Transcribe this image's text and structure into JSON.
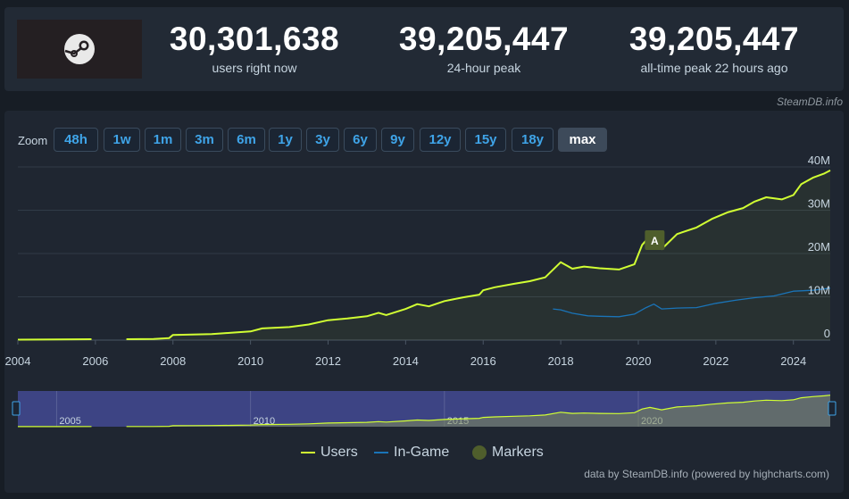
{
  "stats": [
    {
      "value": "30,301,638",
      "label": "users right now"
    },
    {
      "value": "39,205,447",
      "label": "24-hour peak"
    },
    {
      "value": "39,205,447",
      "label": "all-time peak 22 hours ago"
    }
  ],
  "credit_top": "SteamDB.info",
  "zoom": {
    "label": "Zoom",
    "buttons": [
      "48h",
      "1w",
      "1m",
      "3m",
      "6m",
      "1y",
      "3y",
      "6y",
      "9y",
      "12y",
      "15y",
      "18y",
      "max"
    ],
    "active": "max"
  },
  "footer_credit": "data by SteamDB.info (powered by highcharts.com)",
  "colors": {
    "users": "#d1ff33",
    "in_game": "#1a74b8",
    "marker": "#4f5e2c",
    "background": "#1f2631"
  },
  "chart_data": {
    "type": "line",
    "title": "",
    "xlabel": "",
    "ylabel": "",
    "xlim": [
      2004.0,
      2024.95
    ],
    "ylim": [
      0,
      40000000
    ],
    "y_ticks": [
      "0",
      "10M",
      "20M",
      "30M",
      "40M"
    ],
    "x_ticks": [
      "2004",
      "2006",
      "2008",
      "2010",
      "2012",
      "2014",
      "2016",
      "2018",
      "2020",
      "2022",
      "2024"
    ],
    "navigator_ticks": [
      "2005",
      "2010",
      "2015",
      "2020"
    ],
    "legend": [
      "Users",
      "In-Game",
      "Markers"
    ],
    "legend_position": "bottom",
    "grid": true,
    "markers": [
      {
        "label": "A",
        "x": 2020.4
      }
    ],
    "series": [
      {
        "name": "Users",
        "segments": [
          [
            [
              2004.0,
              0.1
            ],
            [
              2005.0,
              0.15
            ],
            [
              2005.9,
              0.2
            ]
          ],
          [
            [
              2006.8,
              0.2
            ],
            [
              2007.5,
              0.25
            ],
            [
              2007.9,
              0.45
            ],
            [
              2008.0,
              1.2
            ],
            [
              2008.5,
              1.3
            ],
            [
              2009.0,
              1.4
            ],
            [
              2009.5,
              1.7
            ],
            [
              2010.0,
              2.0
            ],
            [
              2010.3,
              2.7
            ],
            [
              2011.0,
              3.0
            ],
            [
              2011.5,
              3.6
            ],
            [
              2012.0,
              4.6
            ],
            [
              2012.5,
              5.0
            ],
            [
              2013.0,
              5.5
            ],
            [
              2013.3,
              6.3
            ],
            [
              2013.5,
              5.8
            ],
            [
              2014.0,
              7.2
            ],
            [
              2014.3,
              8.3
            ],
            [
              2014.6,
              7.8
            ],
            [
              2015.0,
              9.0
            ],
            [
              2015.5,
              9.9
            ],
            [
              2015.9,
              10.5
            ],
            [
              2016.0,
              11.5
            ],
            [
              2016.3,
              12.2
            ],
            [
              2016.8,
              13.0
            ],
            [
              2017.2,
              13.6
            ],
            [
              2017.6,
              14.5
            ],
            [
              2018.0,
              18.0
            ],
            [
              2018.3,
              16.5
            ],
            [
              2018.6,
              17.0
            ],
            [
              2019.0,
              16.6
            ],
            [
              2019.5,
              16.3
            ],
            [
              2019.9,
              17.5
            ],
            [
              2020.1,
              22.0
            ],
            [
              2020.3,
              24.0
            ],
            [
              2020.6,
              21.0
            ],
            [
              2021.0,
              24.5
            ],
            [
              2021.5,
              26.0
            ],
            [
              2021.9,
              28.0
            ],
            [
              2022.3,
              29.5
            ],
            [
              2022.7,
              30.5
            ],
            [
              2023.0,
              32.0
            ],
            [
              2023.3,
              33.0
            ],
            [
              2023.7,
              32.5
            ],
            [
              2024.0,
              33.5
            ],
            [
              2024.2,
              36.0
            ],
            [
              2024.5,
              37.5
            ],
            [
              2024.8,
              38.5
            ],
            [
              2024.95,
              39.2
            ]
          ]
        ]
      },
      {
        "name": "In-Game",
        "segments": [
          [
            [
              2017.8,
              7.2
            ],
            [
              2018.0,
              7.0
            ],
            [
              2018.3,
              6.2
            ],
            [
              2018.7,
              5.6
            ],
            [
              2019.0,
              5.5
            ],
            [
              2019.5,
              5.4
            ],
            [
              2019.9,
              6.0
            ],
            [
              2020.2,
              7.5
            ],
            [
              2020.4,
              8.3
            ],
            [
              2020.6,
              7.2
            ],
            [
              2021.0,
              7.4
            ],
            [
              2021.5,
              7.5
            ],
            [
              2022.0,
              8.5
            ],
            [
              2022.5,
              9.2
            ],
            [
              2023.0,
              9.8
            ],
            [
              2023.5,
              10.2
            ],
            [
              2024.0,
              11.3
            ],
            [
              2024.5,
              11.5
            ],
            [
              2024.95,
              12.0
            ]
          ]
        ]
      }
    ]
  }
}
